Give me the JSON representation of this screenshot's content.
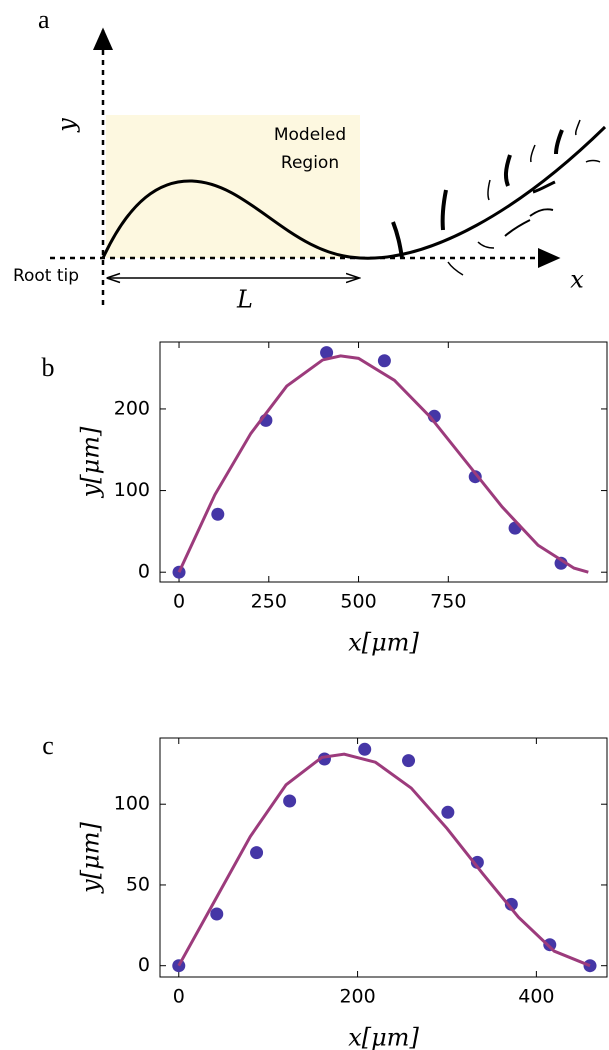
{
  "panel_a": {
    "label": "a",
    "y_label": "y",
    "region_label": [
      "Modeled",
      "Region"
    ],
    "origin_label": "Root tip",
    "length_label": "L",
    "x_label": "x"
  },
  "chart_data": [
    {
      "type": "scatter",
      "panel_label": "b",
      "x_label": "x[μm]",
      "y_label": "y[μm]",
      "xlim": [
        -53,
        1192
      ],
      "ylim": [
        -12,
        282
      ],
      "xticks": [
        0,
        250,
        500,
        750
      ],
      "yticks": [
        0,
        100,
        200
      ],
      "series": [
        {
          "style": "marker",
          "color": "#4536a6",
          "x": [
            0,
            108,
            242,
            411,
            572,
            711,
            825,
            936,
            1064
          ],
          "values": [
            0,
            71,
            186,
            269,
            259,
            191,
            117,
            54,
            11
          ]
        },
        {
          "style": "line",
          "color": "#9c3b7c",
          "x": [
            0,
            100,
            200,
            300,
            400,
            450,
            500,
            600,
            700,
            800,
            900,
            1000,
            1100,
            1140
          ],
          "values": [
            0,
            95,
            170,
            228,
            260,
            265,
            262,
            235,
            190,
            135,
            80,
            33,
            5,
            0
          ]
        }
      ]
    },
    {
      "type": "scatter",
      "panel_label": "c",
      "x_label": "x[μm]",
      "y_label": "y[μm]",
      "xlim": [
        -21,
        479
      ],
      "ylim": [
        -7,
        141
      ],
      "xticks": [
        0,
        200,
        400
      ],
      "yticks": [
        0,
        50,
        100
      ],
      "series": [
        {
          "style": "marker",
          "color": "#4536a6",
          "x": [
            0,
            42.5,
            87,
            124,
            163,
            208,
            257,
            301,
            334,
            372,
            415,
            460
          ],
          "values": [
            0,
            32,
            70,
            102,
            128,
            134,
            127,
            95,
            64,
            38,
            13,
            0
          ]
        },
        {
          "style": "line",
          "color": "#9c3b7c",
          "x": [
            0,
            40,
            80,
            120,
            160,
            185,
            220,
            260,
            300,
            340,
            380,
            420,
            460
          ],
          "values": [
            0,
            40,
            80,
            112,
            129,
            131,
            126,
            110,
            85,
            57,
            30,
            9,
            0
          ]
        }
      ]
    }
  ]
}
